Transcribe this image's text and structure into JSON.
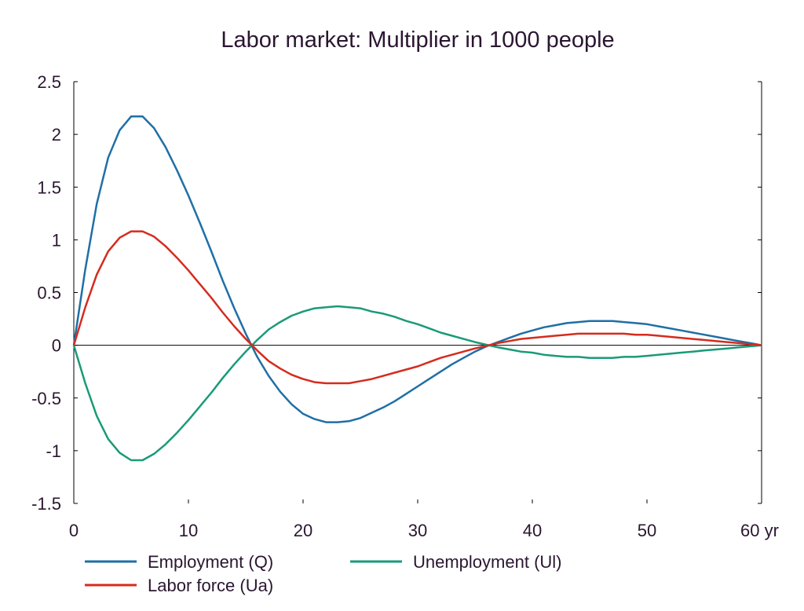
{
  "chart_data": {
    "type": "line",
    "title": "Labor market: Multiplier in 1000 people",
    "xlim": [
      0,
      60
    ],
    "ylim": [
      -1.5,
      2.5
    ],
    "x_ticks": [
      "0",
      "10",
      "20",
      "30",
      "40",
      "50",
      "60 yr"
    ],
    "x_tick_values": [
      0,
      10,
      20,
      30,
      40,
      50,
      60
    ],
    "y_ticks": [
      "2.5",
      "2",
      "1.5",
      "1",
      "0.5",
      "0",
      "-0.5",
      "-1",
      "-1.5"
    ],
    "y_tick_values": [
      2.5,
      2,
      1.5,
      1,
      0.5,
      0,
      -0.5,
      -1,
      -1.5
    ],
    "grid": false,
    "legend_position": "bottom",
    "x": [
      0,
      1,
      2,
      3,
      4,
      5,
      6,
      7,
      8,
      9,
      10,
      11,
      12,
      13,
      14,
      15,
      16,
      17,
      18,
      19,
      20,
      21,
      22,
      23,
      24,
      25,
      26,
      27,
      28,
      29,
      30,
      31,
      32,
      33,
      34,
      35,
      36,
      37,
      38,
      39,
      40,
      41,
      42,
      43,
      44,
      45,
      46,
      47,
      48,
      49,
      50,
      51,
      52,
      53,
      54,
      55,
      56,
      57,
      58,
      59,
      60
    ],
    "series": [
      {
        "name": "Employment (Q)",
        "color": "#1f6fa6",
        "values": [
          0,
          0.72,
          1.34,
          1.78,
          2.04,
          2.17,
          2.17,
          2.06,
          1.88,
          1.66,
          1.42,
          1.16,
          0.89,
          0.61,
          0.35,
          0.11,
          -0.11,
          -0.29,
          -0.44,
          -0.56,
          -0.65,
          -0.7,
          -0.73,
          -0.73,
          -0.72,
          -0.69,
          -0.64,
          -0.59,
          -0.53,
          -0.46,
          -0.39,
          -0.32,
          -0.25,
          -0.18,
          -0.12,
          -0.06,
          -0.01,
          0.03,
          0.07,
          0.11,
          0.14,
          0.17,
          0.19,
          0.21,
          0.22,
          0.23,
          0.23,
          0.23,
          0.22,
          0.21,
          0.2,
          0.18,
          0.16,
          0.14,
          0.12,
          0.1,
          0.08,
          0.06,
          0.04,
          0.02,
          0
        ]
      },
      {
        "name": "Unemployment (Ul)",
        "color": "#1a9a78",
        "values": [
          0,
          -0.36,
          -0.67,
          -0.89,
          -1.02,
          -1.09,
          -1.09,
          -1.03,
          -0.94,
          -0.83,
          -0.71,
          -0.58,
          -0.45,
          -0.31,
          -0.18,
          -0.06,
          0.05,
          0.15,
          0.22,
          0.28,
          0.32,
          0.35,
          0.36,
          0.37,
          0.36,
          0.35,
          0.32,
          0.3,
          0.27,
          0.23,
          0.2,
          0.16,
          0.12,
          0.09,
          0.06,
          0.03,
          0.005,
          -0.02,
          -0.04,
          -0.06,
          -0.07,
          -0.09,
          -0.1,
          -0.11,
          -0.11,
          -0.12,
          -0.12,
          -0.12,
          -0.11,
          -0.11,
          -0.1,
          -0.09,
          -0.08,
          -0.07,
          -0.06,
          -0.05,
          -0.04,
          -0.03,
          -0.02,
          -0.01,
          0
        ]
      },
      {
        "name": "Labor force (Ua)",
        "color": "#d42c1e",
        "values": [
          0,
          0.36,
          0.67,
          0.89,
          1.02,
          1.08,
          1.08,
          1.03,
          0.94,
          0.83,
          0.71,
          0.58,
          0.45,
          0.31,
          0.18,
          0.06,
          -0.05,
          -0.15,
          -0.22,
          -0.28,
          -0.32,
          -0.35,
          -0.36,
          -0.36,
          -0.36,
          -0.34,
          -0.32,
          -0.29,
          -0.26,
          -0.23,
          -0.2,
          -0.16,
          -0.12,
          -0.09,
          -0.06,
          -0.03,
          -0.005,
          0.02,
          0.04,
          0.06,
          0.07,
          0.08,
          0.09,
          0.1,
          0.11,
          0.11,
          0.11,
          0.11,
          0.11,
          0.1,
          0.1,
          0.09,
          0.08,
          0.07,
          0.06,
          0.05,
          0.04,
          0.03,
          0.02,
          0.01,
          0
        ]
      }
    ]
  }
}
